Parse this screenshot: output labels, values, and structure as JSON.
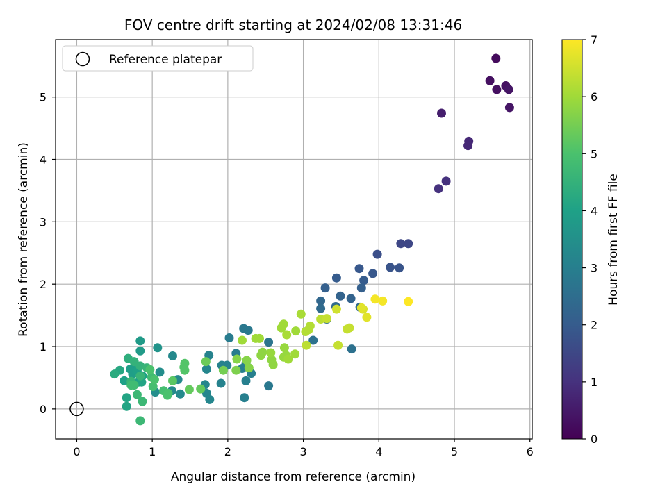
{
  "chart_data": {
    "type": "scatter",
    "title": "FOV centre drift starting at 2024/02/08 13:31:46",
    "xlabel": "Angular distance from reference (arcmin)",
    "ylabel": "Rotation from reference (arcmin)",
    "xlim": [
      -0.28,
      6.03
    ],
    "ylim": [
      -0.48,
      5.92
    ],
    "x_ticks": [
      0,
      1,
      2,
      3,
      4,
      5,
      6
    ],
    "y_ticks": [
      0,
      1,
      2,
      3,
      4,
      5
    ],
    "grid": true,
    "legend": {
      "position": "top-left",
      "entries": [
        "Reference platepar"
      ]
    },
    "colorbar": {
      "label": "Hours from first FF file",
      "range": [
        0,
        7
      ],
      "ticks": [
        0,
        1,
        2,
        3,
        4,
        5,
        6,
        7
      ],
      "colormap": "viridis",
      "stops": [
        "#440154",
        "#46327e",
        "#365c8d",
        "#277f8e",
        "#1fa187",
        "#4ac16d",
        "#a0da39",
        "#fde725"
      ]
    },
    "reference_point": {
      "x": 0,
      "y": 0
    },
    "points": [
      {
        "x": 5.55,
        "y": 5.62,
        "c": 0.2
      },
      {
        "x": 5.47,
        "y": 5.26,
        "c": 0.3
      },
      {
        "x": 5.56,
        "y": 5.12,
        "c": 0.3
      },
      {
        "x": 5.68,
        "y": 5.18,
        "c": 0.3
      },
      {
        "x": 5.72,
        "y": 5.12,
        "c": 0.4
      },
      {
        "x": 5.73,
        "y": 4.83,
        "c": 0.4
      },
      {
        "x": 4.83,
        "y": 4.74,
        "c": 0.6
      },
      {
        "x": 5.19,
        "y": 4.29,
        "c": 0.8
      },
      {
        "x": 5.18,
        "y": 4.22,
        "c": 0.8
      },
      {
        "x": 4.89,
        "y": 3.65,
        "c": 1.0
      },
      {
        "x": 4.79,
        "y": 3.53,
        "c": 1.0
      },
      {
        "x": 4.29,
        "y": 2.65,
        "c": 1.5
      },
      {
        "x": 4.39,
        "y": 2.65,
        "c": 1.5
      },
      {
        "x": 3.98,
        "y": 2.48,
        "c": 1.7
      },
      {
        "x": 4.15,
        "y": 2.27,
        "c": 1.8
      },
      {
        "x": 4.27,
        "y": 2.26,
        "c": 1.8
      },
      {
        "x": 3.74,
        "y": 2.25,
        "c": 1.9
      },
      {
        "x": 3.92,
        "y": 2.17,
        "c": 1.9
      },
      {
        "x": 3.44,
        "y": 2.1,
        "c": 2.0
      },
      {
        "x": 3.8,
        "y": 2.06,
        "c": 2.0
      },
      {
        "x": 3.77,
        "y": 1.94,
        "c": 2.1
      },
      {
        "x": 3.29,
        "y": 1.94,
        "c": 2.1
      },
      {
        "x": 3.49,
        "y": 1.81,
        "c": 2.2
      },
      {
        "x": 3.63,
        "y": 1.77,
        "c": 2.2
      },
      {
        "x": 3.23,
        "y": 1.73,
        "c": 2.3
      },
      {
        "x": 3.43,
        "y": 1.64,
        "c": 2.4
      },
      {
        "x": 3.23,
        "y": 1.61,
        "c": 2.4
      },
      {
        "x": 3.75,
        "y": 1.63,
        "c": 2.4
      },
      {
        "x": 3.31,
        "y": 1.44,
        "c": 2.5
      },
      {
        "x": 3.13,
        "y": 1.1,
        "c": 2.6
      },
      {
        "x": 3.64,
        "y": 0.96,
        "c": 2.6
      },
      {
        "x": 2.54,
        "y": 1.07,
        "c": 2.7
      },
      {
        "x": 2.54,
        "y": 0.37,
        "c": 2.8
      },
      {
        "x": 2.21,
        "y": 1.29,
        "c": 2.8
      },
      {
        "x": 2.27,
        "y": 1.26,
        "c": 2.8
      },
      {
        "x": 2.02,
        "y": 1.14,
        "c": 2.9
      },
      {
        "x": 2.11,
        "y": 0.89,
        "c": 2.9
      },
      {
        "x": 2.24,
        "y": 0.73,
        "c": 3.0
      },
      {
        "x": 2.19,
        "y": 0.65,
        "c": 3.0
      },
      {
        "x": 2.31,
        "y": 0.57,
        "c": 3.0
      },
      {
        "x": 2.24,
        "y": 0.45,
        "c": 3.0
      },
      {
        "x": 2.22,
        "y": 0.18,
        "c": 3.0
      },
      {
        "x": 1.92,
        "y": 0.7,
        "c": 3.1
      },
      {
        "x": 1.99,
        "y": 0.7,
        "c": 3.1
      },
      {
        "x": 1.91,
        "y": 0.41,
        "c": 3.1
      },
      {
        "x": 1.75,
        "y": 0.86,
        "c": 3.1
      },
      {
        "x": 1.72,
        "y": 0.64,
        "c": 3.2
      },
      {
        "x": 1.7,
        "y": 0.39,
        "c": 3.2
      },
      {
        "x": 1.72,
        "y": 0.25,
        "c": 3.2
      },
      {
        "x": 1.76,
        "y": 0.15,
        "c": 3.2
      },
      {
        "x": 1.27,
        "y": 0.85,
        "c": 3.3
      },
      {
        "x": 1.34,
        "y": 0.47,
        "c": 3.3
      },
      {
        "x": 1.37,
        "y": 0.24,
        "c": 3.3
      },
      {
        "x": 1.26,
        "y": 0.29,
        "c": 3.3
      },
      {
        "x": 1.1,
        "y": 0.59,
        "c": 3.4
      },
      {
        "x": 1.04,
        "y": 0.27,
        "c": 3.4
      },
      {
        "x": 1.07,
        "y": 0.98,
        "c": 3.6
      },
      {
        "x": 0.84,
        "y": 1.09,
        "c": 3.8
      },
      {
        "x": 0.84,
        "y": 0.93,
        "c": 3.8
      },
      {
        "x": 0.71,
        "y": 0.64,
        "c": 3.9
      },
      {
        "x": 0.74,
        "y": 0.56,
        "c": 3.9
      },
      {
        "x": 0.77,
        "y": 0.71,
        "c": 3.9
      },
      {
        "x": 0.8,
        "y": 0.61,
        "c": 4.0
      },
      {
        "x": 0.82,
        "y": 0.43,
        "c": 4.0
      },
      {
        "x": 0.87,
        "y": 0.53,
        "c": 4.0
      },
      {
        "x": 0.63,
        "y": 0.45,
        "c": 4.0
      },
      {
        "x": 0.66,
        "y": 0.18,
        "c": 4.1
      },
      {
        "x": 0.66,
        "y": 0.04,
        "c": 4.1
      },
      {
        "x": 0.86,
        "y": 0.43,
        "c": 4.1
      },
      {
        "x": 0.57,
        "y": 0.62,
        "c": 4.2
      },
      {
        "x": 0.5,
        "y": 0.56,
        "c": 4.3
      },
      {
        "x": 0.68,
        "y": 0.81,
        "c": 4.4
      },
      {
        "x": 0.76,
        "y": 0.76,
        "c": 4.5
      },
      {
        "x": 0.84,
        "y": 0.69,
        "c": 4.5
      },
      {
        "x": 0.93,
        "y": 0.66,
        "c": 4.6
      },
      {
        "x": 0.84,
        "y": 0.53,
        "c": 4.6
      },
      {
        "x": 0.72,
        "y": 0.44,
        "c": 4.6
      },
      {
        "x": 0.8,
        "y": 0.23,
        "c": 4.7
      },
      {
        "x": 0.87,
        "y": 0.12,
        "c": 4.7
      },
      {
        "x": 0.84,
        "y": -0.19,
        "c": 4.7
      },
      {
        "x": 0.72,
        "y": 0.38,
        "c": 4.8
      },
      {
        "x": 0.76,
        "y": 0.38,
        "c": 4.8
      },
      {
        "x": 0.99,
        "y": 0.51,
        "c": 4.8
      },
      {
        "x": 1.01,
        "y": 0.36,
        "c": 4.9
      },
      {
        "x": 1.15,
        "y": 0.29,
        "c": 4.9
      },
      {
        "x": 1.21,
        "y": 0.25,
        "c": 5.0
      },
      {
        "x": 1.2,
        "y": 0.22,
        "c": 5.0
      },
      {
        "x": 0.97,
        "y": 0.63,
        "c": 5.0
      },
      {
        "x": 1.03,
        "y": 0.47,
        "c": 5.0
      },
      {
        "x": 1.43,
        "y": 0.73,
        "c": 5.1
      },
      {
        "x": 1.42,
        "y": 0.67,
        "c": 5.1
      },
      {
        "x": 1.43,
        "y": 0.62,
        "c": 5.1
      },
      {
        "x": 1.27,
        "y": 0.45,
        "c": 5.2
      },
      {
        "x": 1.49,
        "y": 0.31,
        "c": 5.3
      },
      {
        "x": 1.64,
        "y": 0.32,
        "c": 5.3
      },
      {
        "x": 1.71,
        "y": 0.76,
        "c": 5.4
      },
      {
        "x": 1.94,
        "y": 0.62,
        "c": 5.5
      },
      {
        "x": 2.11,
        "y": 0.62,
        "c": 5.6
      },
      {
        "x": 2.12,
        "y": 0.8,
        "c": 5.7
      },
      {
        "x": 2.25,
        "y": 0.78,
        "c": 5.7
      },
      {
        "x": 2.28,
        "y": 0.66,
        "c": 5.7
      },
      {
        "x": 2.44,
        "y": 0.86,
        "c": 5.8
      },
      {
        "x": 2.46,
        "y": 0.91,
        "c": 5.8
      },
      {
        "x": 2.58,
        "y": 0.79,
        "c": 5.8
      },
      {
        "x": 2.6,
        "y": 0.71,
        "c": 5.8
      },
      {
        "x": 2.74,
        "y": 0.83,
        "c": 5.9
      },
      {
        "x": 2.75,
        "y": 0.98,
        "c": 5.9
      },
      {
        "x": 2.77,
        "y": 0.86,
        "c": 5.9
      },
      {
        "x": 2.8,
        "y": 0.8,
        "c": 6.0
      },
      {
        "x": 2.89,
        "y": 0.88,
        "c": 6.0
      },
      {
        "x": 2.57,
        "y": 0.9,
        "c": 5.9
      },
      {
        "x": 2.74,
        "y": 1.36,
        "c": 6.0
      },
      {
        "x": 2.71,
        "y": 1.3,
        "c": 6.0
      },
      {
        "x": 2.9,
        "y": 1.25,
        "c": 6.0
      },
      {
        "x": 2.78,
        "y": 1.19,
        "c": 6.1
      },
      {
        "x": 2.97,
        "y": 1.52,
        "c": 6.1
      },
      {
        "x": 2.19,
        "y": 1.1,
        "c": 6.0
      },
      {
        "x": 2.37,
        "y": 1.13,
        "c": 6.0
      },
      {
        "x": 2.42,
        "y": 1.13,
        "c": 6.0
      },
      {
        "x": 3.03,
        "y": 1.24,
        "c": 6.2
      },
      {
        "x": 3.07,
        "y": 1.27,
        "c": 6.2
      },
      {
        "x": 3.09,
        "y": 1.33,
        "c": 6.2
      },
      {
        "x": 3.04,
        "y": 1.02,
        "c": 6.3
      },
      {
        "x": 3.23,
        "y": 1.44,
        "c": 6.3
      },
      {
        "x": 3.31,
        "y": 1.45,
        "c": 6.4
      },
      {
        "x": 3.46,
        "y": 1.02,
        "c": 6.4
      },
      {
        "x": 3.58,
        "y": 1.28,
        "c": 6.4
      },
      {
        "x": 3.61,
        "y": 1.3,
        "c": 6.4
      },
      {
        "x": 3.44,
        "y": 1.6,
        "c": 6.5
      },
      {
        "x": 3.79,
        "y": 1.6,
        "c": 6.6
      },
      {
        "x": 3.84,
        "y": 1.47,
        "c": 6.7
      },
      {
        "x": 3.77,
        "y": 1.62,
        "c": 6.7
      },
      {
        "x": 3.95,
        "y": 1.76,
        "c": 6.9
      },
      {
        "x": 4.05,
        "y": 1.73,
        "c": 6.9
      },
      {
        "x": 4.39,
        "y": 1.72,
        "c": 7.0
      }
    ]
  }
}
